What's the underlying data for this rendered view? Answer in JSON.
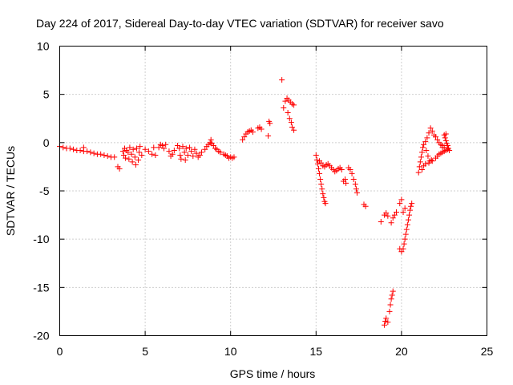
{
  "chart_data": {
    "type": "scatter",
    "title": "Day 224 of 2017, Sidereal Day-to-day VTEC variation (SDTVAR) for receiver savo",
    "xlabel": "GPS time / hours",
    "ylabel": "SDTVAR / TECUs",
    "xlim": [
      0,
      25
    ],
    "ylim": [
      -20,
      10
    ],
    "xticks": [
      0,
      5,
      10,
      15,
      20,
      25
    ],
    "xtick_labels": [
      "0",
      "5",
      "10",
      "15",
      "20",
      "25"
    ],
    "yticks": [
      -20,
      -15,
      -10,
      -5,
      0,
      5,
      10
    ],
    "ytick_labels": [
      "-20",
      "-15",
      "-10",
      "-5",
      "0",
      "5",
      "10"
    ],
    "grid": true,
    "marker": "plus",
    "color": "#ff0000",
    "series": [
      {
        "name": "SDTVAR",
        "points": [
          [
            0.0,
            -0.4
          ],
          [
            0.2,
            -0.5
          ],
          [
            0.4,
            -0.6
          ],
          [
            0.6,
            -0.6
          ],
          [
            0.8,
            -0.7
          ],
          [
            1.0,
            -0.8
          ],
          [
            1.2,
            -0.8
          ],
          [
            1.4,
            -0.9
          ],
          [
            1.4,
            -0.5
          ],
          [
            1.6,
            -0.9
          ],
          [
            1.8,
            -1.0
          ],
          [
            2.0,
            -1.1
          ],
          [
            2.2,
            -1.2
          ],
          [
            2.4,
            -1.2
          ],
          [
            2.6,
            -1.3
          ],
          [
            2.8,
            -1.4
          ],
          [
            3.0,
            -1.5
          ],
          [
            3.2,
            -1.5
          ],
          [
            3.4,
            -2.5
          ],
          [
            3.5,
            -2.7
          ],
          [
            3.7,
            -0.9
          ],
          [
            3.75,
            -1.3
          ],
          [
            3.8,
            -0.6
          ],
          [
            3.85,
            -1.6
          ],
          [
            3.9,
            -0.8
          ],
          [
            4.0,
            -1.0
          ],
          [
            4.05,
            -1.7
          ],
          [
            4.1,
            -0.5
          ],
          [
            4.2,
            -1.2
          ],
          [
            4.25,
            -2.0
          ],
          [
            4.3,
            -0.7
          ],
          [
            4.4,
            -1.5
          ],
          [
            4.45,
            -2.3
          ],
          [
            4.5,
            -0.6
          ],
          [
            4.6,
            -1.8
          ],
          [
            4.65,
            -1.0
          ],
          [
            4.7,
            -0.4
          ],
          [
            4.8,
            -1.3
          ],
          [
            5.0,
            -0.7
          ],
          [
            5.2,
            -0.9
          ],
          [
            5.4,
            -1.2
          ],
          [
            5.5,
            -0.5
          ],
          [
            5.6,
            -1.3
          ],
          [
            5.8,
            -0.5
          ],
          [
            5.9,
            -0.2
          ],
          [
            6.0,
            -0.3
          ],
          [
            6.1,
            -0.6
          ],
          [
            6.2,
            -0.2
          ],
          [
            6.4,
            -0.9
          ],
          [
            6.5,
            -1.4
          ],
          [
            6.6,
            -1.2
          ],
          [
            6.7,
            -0.8
          ],
          [
            6.9,
            -0.3
          ],
          [
            7.0,
            -0.6
          ],
          [
            7.05,
            -1.3
          ],
          [
            7.1,
            -1.7
          ],
          [
            7.2,
            -0.4
          ],
          [
            7.3,
            -1.0
          ],
          [
            7.35,
            -1.8
          ],
          [
            7.4,
            -0.6
          ],
          [
            7.5,
            -1.3
          ],
          [
            7.6,
            -0.5
          ],
          [
            7.7,
            -0.9
          ],
          [
            7.8,
            -1.4
          ],
          [
            7.9,
            -0.7
          ],
          [
            8.0,
            -1.1
          ],
          [
            8.1,
            -1.5
          ],
          [
            8.2,
            -1.3
          ],
          [
            8.3,
            -1.0
          ],
          [
            8.5,
            -0.7
          ],
          [
            8.6,
            -0.4
          ],
          [
            8.7,
            -0.2
          ],
          [
            8.8,
            0.0
          ],
          [
            8.85,
            0.3
          ],
          [
            8.9,
            -0.1
          ],
          [
            9.0,
            -0.3
          ],
          [
            9.1,
            -0.6
          ],
          [
            9.2,
            -0.7
          ],
          [
            9.3,
            -0.9
          ],
          [
            9.4,
            -1.0
          ],
          [
            9.6,
            -1.2
          ],
          [
            9.7,
            -1.3
          ],
          [
            9.8,
            -1.4
          ],
          [
            9.9,
            -1.6
          ],
          [
            10.0,
            -1.5
          ],
          [
            10.1,
            -1.6
          ],
          [
            10.2,
            -1.5
          ],
          [
            10.7,
            0.3
          ],
          [
            10.8,
            0.6
          ],
          [
            10.9,
            0.9
          ],
          [
            11.0,
            1.1
          ],
          [
            11.1,
            1.2
          ],
          [
            11.2,
            1.3
          ],
          [
            11.3,
            1.1
          ],
          [
            11.6,
            1.5
          ],
          [
            11.7,
            1.6
          ],
          [
            11.8,
            1.4
          ],
          [
            12.2,
            0.7
          ],
          [
            12.25,
            2.2
          ],
          [
            12.3,
            2.0
          ],
          [
            13.0,
            6.5
          ],
          [
            13.1,
            3.6
          ],
          [
            13.2,
            4.3
          ],
          [
            13.3,
            4.6
          ],
          [
            13.35,
            3.1
          ],
          [
            13.4,
            4.4
          ],
          [
            13.45,
            2.5
          ],
          [
            13.5,
            4.2
          ],
          [
            13.55,
            2.1
          ],
          [
            13.6,
            4.0
          ],
          [
            13.6,
            1.6
          ],
          [
            13.7,
            3.9
          ],
          [
            13.7,
            1.3
          ],
          [
            15.0,
            -1.3
          ],
          [
            15.05,
            -1.8
          ],
          [
            15.1,
            -2.2
          ],
          [
            15.15,
            -2.7
          ],
          [
            15.2,
            -3.2
          ],
          [
            15.25,
            -3.8
          ],
          [
            15.3,
            -4.3
          ],
          [
            15.35,
            -4.8
          ],
          [
            15.4,
            -5.3
          ],
          [
            15.45,
            -5.7
          ],
          [
            15.5,
            -6.1
          ],
          [
            15.55,
            -6.3
          ],
          [
            15.2,
            -1.9
          ],
          [
            15.3,
            -2.1
          ],
          [
            15.4,
            -2.4
          ],
          [
            15.5,
            -2.5
          ],
          [
            15.6,
            -2.3
          ],
          [
            15.7,
            -2.2
          ],
          [
            15.8,
            -2.4
          ],
          [
            15.9,
            -2.6
          ],
          [
            16.0,
            -2.8
          ],
          [
            16.1,
            -3.0
          ],
          [
            16.2,
            -2.9
          ],
          [
            16.3,
            -2.7
          ],
          [
            16.4,
            -2.6
          ],
          [
            16.5,
            -2.8
          ],
          [
            16.6,
            -4.0
          ],
          [
            16.7,
            -3.8
          ],
          [
            16.75,
            -4.2
          ],
          [
            16.9,
            -2.6
          ],
          [
            17.0,
            -2.8
          ],
          [
            17.1,
            -3.2
          ],
          [
            17.2,
            -3.8
          ],
          [
            17.3,
            -4.3
          ],
          [
            17.35,
            -4.8
          ],
          [
            17.4,
            -5.2
          ],
          [
            17.8,
            -6.4
          ],
          [
            17.9,
            -6.6
          ],
          [
            18.8,
            -8.2
          ],
          [
            19.0,
            -7.5
          ],
          [
            19.1,
            -7.3
          ],
          [
            19.2,
            -7.6
          ],
          [
            19.0,
            -18.9
          ],
          [
            19.05,
            -18.5
          ],
          [
            19.1,
            -18.2
          ],
          [
            19.2,
            -18.6
          ],
          [
            19.3,
            -17.5
          ],
          [
            19.35,
            -16.8
          ],
          [
            19.4,
            -16.2
          ],
          [
            19.45,
            -15.8
          ],
          [
            19.5,
            -15.4
          ],
          [
            19.4,
            -8.3
          ],
          [
            19.5,
            -7.8
          ],
          [
            19.6,
            -7.5
          ],
          [
            19.7,
            -7.2
          ],
          [
            19.9,
            -6.3
          ],
          [
            20.0,
            -5.9
          ],
          [
            19.9,
            -11.0
          ],
          [
            20.0,
            -11.3
          ],
          [
            20.1,
            -11.0
          ],
          [
            20.15,
            -10.5
          ],
          [
            20.2,
            -10.0
          ],
          [
            20.25,
            -9.5
          ],
          [
            20.3,
            -9.0
          ],
          [
            20.35,
            -8.5
          ],
          [
            20.4,
            -8.0
          ],
          [
            20.45,
            -7.5
          ],
          [
            20.5,
            -7.0
          ],
          [
            20.55,
            -6.6
          ],
          [
            20.6,
            -6.3
          ],
          [
            20.1,
            -7.2
          ],
          [
            20.2,
            -6.8
          ],
          [
            21.0,
            -3.1
          ],
          [
            21.05,
            -2.5
          ],
          [
            21.1,
            -2.0
          ],
          [
            21.15,
            -1.5
          ],
          [
            21.2,
            -1.0
          ],
          [
            21.25,
            -0.5
          ],
          [
            21.3,
            -0.2
          ],
          [
            21.4,
            0.1
          ],
          [
            21.45,
            -0.8
          ],
          [
            21.5,
            0.5
          ],
          [
            21.55,
            -1.4
          ],
          [
            21.6,
            1.0
          ],
          [
            21.65,
            -1.9
          ],
          [
            21.7,
            1.5
          ],
          [
            21.75,
            -1.8
          ],
          [
            21.8,
            1.2
          ],
          [
            21.9,
            0.8
          ],
          [
            22.0,
            0.6
          ],
          [
            22.1,
            0.3
          ],
          [
            22.2,
            0.0
          ],
          [
            22.3,
            -0.2
          ],
          [
            22.4,
            -0.5
          ],
          [
            21.2,
            -2.8
          ],
          [
            21.3,
            -2.4
          ],
          [
            21.4,
            -2.2
          ],
          [
            21.6,
            -2.1
          ],
          [
            21.8,
            -1.9
          ],
          [
            22.0,
            -1.6
          ],
          [
            22.1,
            -1.4
          ],
          [
            22.2,
            -1.2
          ],
          [
            22.3,
            -1.1
          ],
          [
            22.4,
            -1.0
          ],
          [
            22.5,
            -0.9
          ],
          [
            22.6,
            -0.8
          ],
          [
            22.7,
            -0.7
          ],
          [
            22.5,
            0.8
          ],
          [
            22.55,
            0.5
          ],
          [
            22.6,
            0.2
          ],
          [
            22.65,
            -0.1
          ],
          [
            22.7,
            -0.3
          ],
          [
            22.75,
            -0.6
          ],
          [
            22.8,
            -0.8
          ],
          [
            22.4,
            -0.3
          ],
          [
            22.5,
            -0.5
          ],
          [
            22.6,
            0.9
          ]
        ]
      }
    ]
  }
}
